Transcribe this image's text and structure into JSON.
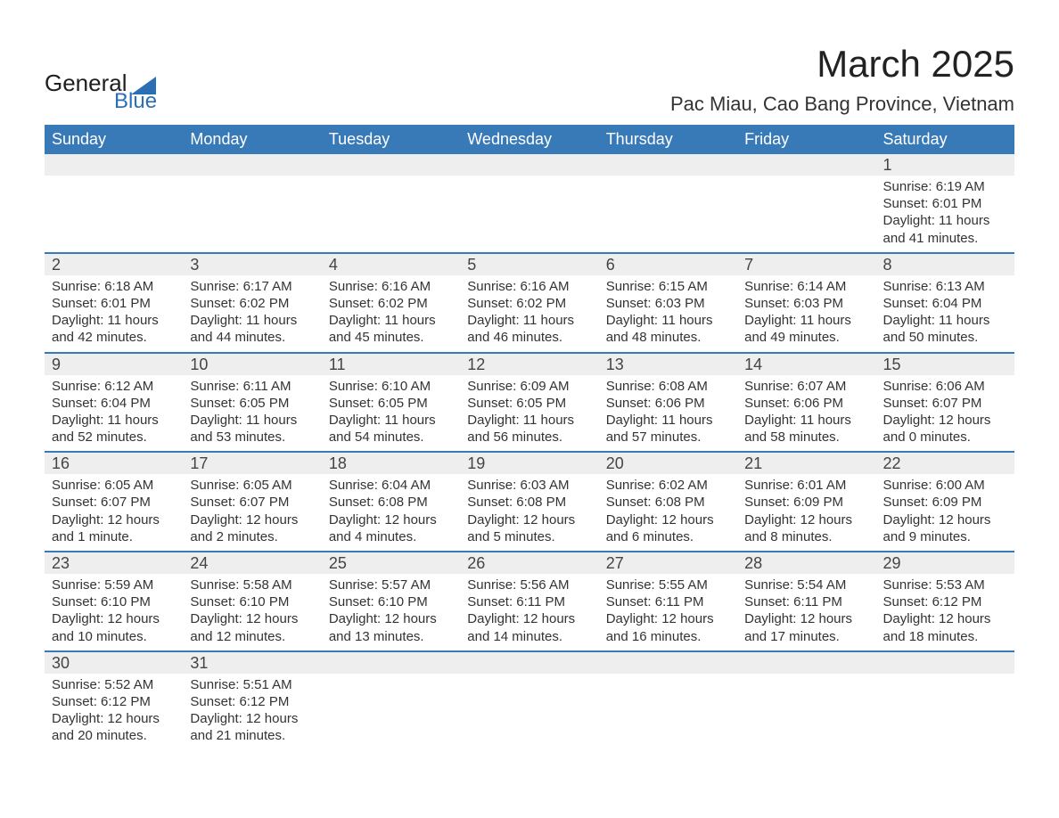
{
  "logo": {
    "word1": "General",
    "word2": "Blue",
    "text_color": "#1f1f1f",
    "accent_color": "#2a6fb5"
  },
  "title": "March 2025",
  "location": "Pac Miau, Cao Bang Province, Vietnam",
  "colors": {
    "header_bg": "#3879b8",
    "header_text": "#ffffff",
    "daynum_bg": "#eeeeee",
    "row_divider": "#3879b8",
    "body_text": "#333333",
    "background": "#ffffff"
  },
  "typography": {
    "title_fontsize": 42,
    "location_fontsize": 22,
    "header_fontsize": 18,
    "daynum_fontsize": 18,
    "detail_fontsize": 15
  },
  "day_headers": [
    "Sunday",
    "Monday",
    "Tuesday",
    "Wednesday",
    "Thursday",
    "Friday",
    "Saturday"
  ],
  "weeks": [
    [
      {
        "day": "",
        "sunrise": "",
        "sunset": "",
        "daylight1": "",
        "daylight2": ""
      },
      {
        "day": "",
        "sunrise": "",
        "sunset": "",
        "daylight1": "",
        "daylight2": ""
      },
      {
        "day": "",
        "sunrise": "",
        "sunset": "",
        "daylight1": "",
        "daylight2": ""
      },
      {
        "day": "",
        "sunrise": "",
        "sunset": "",
        "daylight1": "",
        "daylight2": ""
      },
      {
        "day": "",
        "sunrise": "",
        "sunset": "",
        "daylight1": "",
        "daylight2": ""
      },
      {
        "day": "",
        "sunrise": "",
        "sunset": "",
        "daylight1": "",
        "daylight2": ""
      },
      {
        "day": "1",
        "sunrise": "Sunrise: 6:19 AM",
        "sunset": "Sunset: 6:01 PM",
        "daylight1": "Daylight: 11 hours",
        "daylight2": "and 41 minutes."
      }
    ],
    [
      {
        "day": "2",
        "sunrise": "Sunrise: 6:18 AM",
        "sunset": "Sunset: 6:01 PM",
        "daylight1": "Daylight: 11 hours",
        "daylight2": "and 42 minutes."
      },
      {
        "day": "3",
        "sunrise": "Sunrise: 6:17 AM",
        "sunset": "Sunset: 6:02 PM",
        "daylight1": "Daylight: 11 hours",
        "daylight2": "and 44 minutes."
      },
      {
        "day": "4",
        "sunrise": "Sunrise: 6:16 AM",
        "sunset": "Sunset: 6:02 PM",
        "daylight1": "Daylight: 11 hours",
        "daylight2": "and 45 minutes."
      },
      {
        "day": "5",
        "sunrise": "Sunrise: 6:16 AM",
        "sunset": "Sunset: 6:02 PM",
        "daylight1": "Daylight: 11 hours",
        "daylight2": "and 46 minutes."
      },
      {
        "day": "6",
        "sunrise": "Sunrise: 6:15 AM",
        "sunset": "Sunset: 6:03 PM",
        "daylight1": "Daylight: 11 hours",
        "daylight2": "and 48 minutes."
      },
      {
        "day": "7",
        "sunrise": "Sunrise: 6:14 AM",
        "sunset": "Sunset: 6:03 PM",
        "daylight1": "Daylight: 11 hours",
        "daylight2": "and 49 minutes."
      },
      {
        "day": "8",
        "sunrise": "Sunrise: 6:13 AM",
        "sunset": "Sunset: 6:04 PM",
        "daylight1": "Daylight: 11 hours",
        "daylight2": "and 50 minutes."
      }
    ],
    [
      {
        "day": "9",
        "sunrise": "Sunrise: 6:12 AM",
        "sunset": "Sunset: 6:04 PM",
        "daylight1": "Daylight: 11 hours",
        "daylight2": "and 52 minutes."
      },
      {
        "day": "10",
        "sunrise": "Sunrise: 6:11 AM",
        "sunset": "Sunset: 6:05 PM",
        "daylight1": "Daylight: 11 hours",
        "daylight2": "and 53 minutes."
      },
      {
        "day": "11",
        "sunrise": "Sunrise: 6:10 AM",
        "sunset": "Sunset: 6:05 PM",
        "daylight1": "Daylight: 11 hours",
        "daylight2": "and 54 minutes."
      },
      {
        "day": "12",
        "sunrise": "Sunrise: 6:09 AM",
        "sunset": "Sunset: 6:05 PM",
        "daylight1": "Daylight: 11 hours",
        "daylight2": "and 56 minutes."
      },
      {
        "day": "13",
        "sunrise": "Sunrise: 6:08 AM",
        "sunset": "Sunset: 6:06 PM",
        "daylight1": "Daylight: 11 hours",
        "daylight2": "and 57 minutes."
      },
      {
        "day": "14",
        "sunrise": "Sunrise: 6:07 AM",
        "sunset": "Sunset: 6:06 PM",
        "daylight1": "Daylight: 11 hours",
        "daylight2": "and 58 minutes."
      },
      {
        "day": "15",
        "sunrise": "Sunrise: 6:06 AM",
        "sunset": "Sunset: 6:07 PM",
        "daylight1": "Daylight: 12 hours",
        "daylight2": "and 0 minutes."
      }
    ],
    [
      {
        "day": "16",
        "sunrise": "Sunrise: 6:05 AM",
        "sunset": "Sunset: 6:07 PM",
        "daylight1": "Daylight: 12 hours",
        "daylight2": "and 1 minute."
      },
      {
        "day": "17",
        "sunrise": "Sunrise: 6:05 AM",
        "sunset": "Sunset: 6:07 PM",
        "daylight1": "Daylight: 12 hours",
        "daylight2": "and 2 minutes."
      },
      {
        "day": "18",
        "sunrise": "Sunrise: 6:04 AM",
        "sunset": "Sunset: 6:08 PM",
        "daylight1": "Daylight: 12 hours",
        "daylight2": "and 4 minutes."
      },
      {
        "day": "19",
        "sunrise": "Sunrise: 6:03 AM",
        "sunset": "Sunset: 6:08 PM",
        "daylight1": "Daylight: 12 hours",
        "daylight2": "and 5 minutes."
      },
      {
        "day": "20",
        "sunrise": "Sunrise: 6:02 AM",
        "sunset": "Sunset: 6:08 PM",
        "daylight1": "Daylight: 12 hours",
        "daylight2": "and 6 minutes."
      },
      {
        "day": "21",
        "sunrise": "Sunrise: 6:01 AM",
        "sunset": "Sunset: 6:09 PM",
        "daylight1": "Daylight: 12 hours",
        "daylight2": "and 8 minutes."
      },
      {
        "day": "22",
        "sunrise": "Sunrise: 6:00 AM",
        "sunset": "Sunset: 6:09 PM",
        "daylight1": "Daylight: 12 hours",
        "daylight2": "and 9 minutes."
      }
    ],
    [
      {
        "day": "23",
        "sunrise": "Sunrise: 5:59 AM",
        "sunset": "Sunset: 6:10 PM",
        "daylight1": "Daylight: 12 hours",
        "daylight2": "and 10 minutes."
      },
      {
        "day": "24",
        "sunrise": "Sunrise: 5:58 AM",
        "sunset": "Sunset: 6:10 PM",
        "daylight1": "Daylight: 12 hours",
        "daylight2": "and 12 minutes."
      },
      {
        "day": "25",
        "sunrise": "Sunrise: 5:57 AM",
        "sunset": "Sunset: 6:10 PM",
        "daylight1": "Daylight: 12 hours",
        "daylight2": "and 13 minutes."
      },
      {
        "day": "26",
        "sunrise": "Sunrise: 5:56 AM",
        "sunset": "Sunset: 6:11 PM",
        "daylight1": "Daylight: 12 hours",
        "daylight2": "and 14 minutes."
      },
      {
        "day": "27",
        "sunrise": "Sunrise: 5:55 AM",
        "sunset": "Sunset: 6:11 PM",
        "daylight1": "Daylight: 12 hours",
        "daylight2": "and 16 minutes."
      },
      {
        "day": "28",
        "sunrise": "Sunrise: 5:54 AM",
        "sunset": "Sunset: 6:11 PM",
        "daylight1": "Daylight: 12 hours",
        "daylight2": "and 17 minutes."
      },
      {
        "day": "29",
        "sunrise": "Sunrise: 5:53 AM",
        "sunset": "Sunset: 6:12 PM",
        "daylight1": "Daylight: 12 hours",
        "daylight2": "and 18 minutes."
      }
    ],
    [
      {
        "day": "30",
        "sunrise": "Sunrise: 5:52 AM",
        "sunset": "Sunset: 6:12 PM",
        "daylight1": "Daylight: 12 hours",
        "daylight2": "and 20 minutes."
      },
      {
        "day": "31",
        "sunrise": "Sunrise: 5:51 AM",
        "sunset": "Sunset: 6:12 PM",
        "daylight1": "Daylight: 12 hours",
        "daylight2": "and 21 minutes."
      },
      {
        "day": "",
        "sunrise": "",
        "sunset": "",
        "daylight1": "",
        "daylight2": ""
      },
      {
        "day": "",
        "sunrise": "",
        "sunset": "",
        "daylight1": "",
        "daylight2": ""
      },
      {
        "day": "",
        "sunrise": "",
        "sunset": "",
        "daylight1": "",
        "daylight2": ""
      },
      {
        "day": "",
        "sunrise": "",
        "sunset": "",
        "daylight1": "",
        "daylight2": ""
      },
      {
        "day": "",
        "sunrise": "",
        "sunset": "",
        "daylight1": "",
        "daylight2": ""
      }
    ]
  ]
}
